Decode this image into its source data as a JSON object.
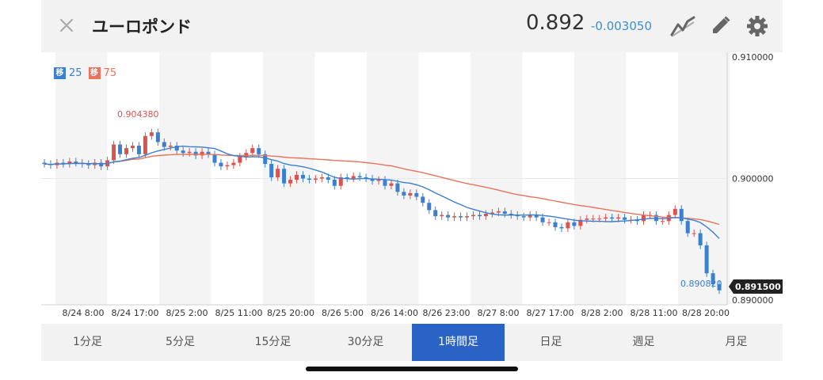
{
  "header": {
    "title": "ユーロポンド",
    "price": "0.892",
    "change": "-0.003050",
    "close_icon": "close-icon",
    "chart_type_icon": "line-chart-icon",
    "draw_icon": "pencil-icon",
    "settings_icon": "gear-icon"
  },
  "legend": {
    "ma_short_badge": "移",
    "ma_short_period": "25",
    "ma_long_badge": "移",
    "ma_long_period": "75",
    "ma_short_color": "#3a7fd0",
    "ma_long_color": "#e8735c"
  },
  "annotations": {
    "high_label": "0.904380",
    "low_label": "0.890820",
    "current_label": "0.891500"
  },
  "tabs": [
    {
      "label": "1分足",
      "active": false
    },
    {
      "label": "5分足",
      "active": false
    },
    {
      "label": "15分足",
      "active": false
    },
    {
      "label": "30分足",
      "active": false
    },
    {
      "label": "1時間足",
      "active": true
    },
    {
      "label": "日足",
      "active": false
    },
    {
      "label": "週足",
      "active": false
    },
    {
      "label": "月足",
      "active": false
    }
  ],
  "colors": {
    "up": "#d9534f",
    "down": "#3a7fd0",
    "active_tab": "#2a63c5",
    "change": "#3a8fd6"
  },
  "chart_data": {
    "type": "candlestick",
    "pair": "ユーロポンド",
    "yticks": [
      "0.910000",
      "0.900000",
      "0.890000"
    ],
    "ylim": [
      0.89,
      0.91
    ],
    "xticks": [
      "8/24 8:00",
      "8/24 17:00",
      "8/25 2:00",
      "8/25 11:00",
      "8/25 20:00",
      "8/26 5:00",
      "8/26 14:00",
      "8/26 23:00",
      "8/27 8:00",
      "8/27 17:00",
      "8/28 2:00",
      "8/28 11:00",
      "8/28 20:00"
    ],
    "closes": [
      0.9012,
      0.9011,
      0.9013,
      0.9012,
      0.9014,
      0.9013,
      0.9012,
      0.9011,
      0.9013,
      0.901,
      0.9015,
      0.9028,
      0.902,
      0.9025,
      0.9027,
      0.902,
      0.9035,
      0.9038,
      0.903,
      0.9026,
      0.9027,
      0.9023,
      0.9021,
      0.9022,
      0.9019,
      0.9022,
      0.902,
      0.9013,
      0.901,
      0.9011,
      0.9013,
      0.9018,
      0.9021,
      0.9025,
      0.902,
      0.9012,
      0.9001,
      0.9008,
      0.8996,
      0.8999,
      0.9003,
      0.9,
      0.8999,
      0.9,
      0.9001,
      0.8999,
      0.8994,
      0.9001,
      0.9,
      0.9002,
      0.9001,
      0.9,
      0.8998,
      0.8999,
      0.8994,
      0.8996,
      0.8989,
      0.8986,
      0.8988,
      0.8985,
      0.898,
      0.8974,
      0.8969,
      0.897,
      0.8968,
      0.8969,
      0.8968,
      0.8969,
      0.897,
      0.8969,
      0.8971,
      0.8972,
      0.8973,
      0.8971,
      0.897,
      0.8969,
      0.8968,
      0.897,
      0.8968,
      0.8964,
      0.8964,
      0.896,
      0.8959,
      0.8964,
      0.8961,
      0.8966,
      0.8967,
      0.8967,
      0.8967,
      0.8968,
      0.8967,
      0.8968,
      0.8966,
      0.8966,
      0.8965,
      0.897,
      0.897,
      0.8965,
      0.8965,
      0.897,
      0.8975,
      0.8965,
      0.8955,
      0.8955,
      0.8945,
      0.8922,
      0.8913,
      0.8908
    ]
  }
}
